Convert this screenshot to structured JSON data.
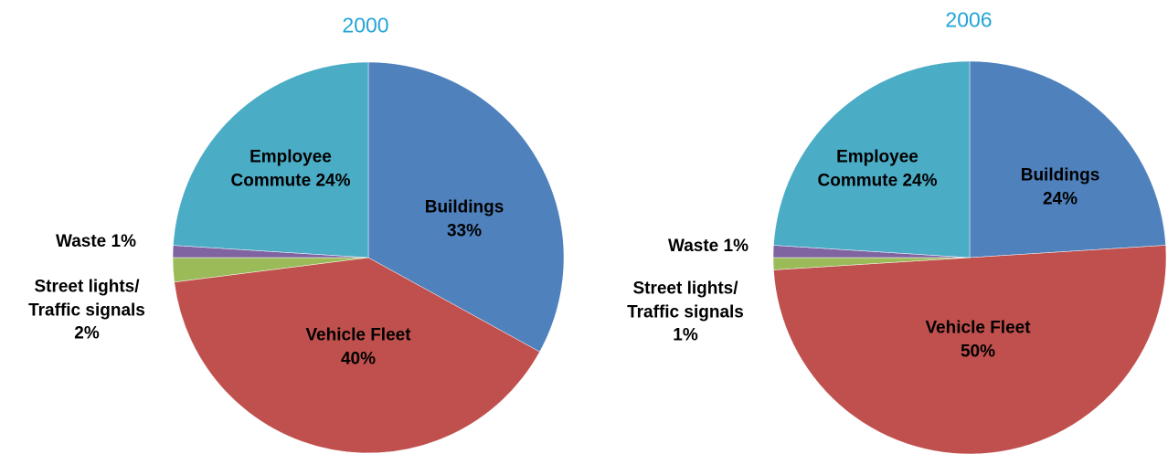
{
  "chart_data": [
    {
      "type": "pie",
      "title": "2000",
      "categories": [
        "Buildings",
        "Vehicle Fleet",
        "Street lights/\nTraffic  signals",
        "Waste",
        "Employee\nCommute"
      ],
      "values": [
        33,
        40,
        2,
        1,
        24
      ],
      "value_labels": [
        "33%",
        "40%",
        "2%",
        "1%",
        "24%"
      ],
      "colors": [
        "#4f81bd",
        "#c0504d",
        "#9bbb59",
        "#8064a2",
        "#4bacc6"
      ]
    },
    {
      "type": "pie",
      "title": "2006",
      "categories": [
        "Buildings",
        "Vehicle Fleet",
        "Street lights/\nTraffic  signals",
        "Waste",
        "Employee\nCommute"
      ],
      "values": [
        24,
        50,
        1,
        1,
        24
      ],
      "value_labels": [
        "24%",
        "50%",
        "1%",
        "1%",
        "24%"
      ],
      "colors": [
        "#4f81bd",
        "#c0504d",
        "#9bbb59",
        "#8064a2",
        "#4bacc6"
      ]
    }
  ]
}
